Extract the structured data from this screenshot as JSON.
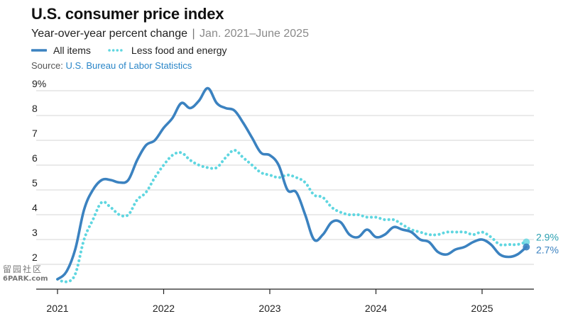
{
  "header": {
    "title": "U.S. consumer price index",
    "subtitle_main": "Year-over-year percent change",
    "subtitle_sep": "|",
    "subtitle_range": "Jan. 2021–June 2025",
    "source_label": "Source:",
    "source_agency": "U.S. Bureau of Labor Statistics"
  },
  "legend": [
    {
      "label": "All items"
    },
    {
      "label": "Less food and energy"
    }
  ],
  "watermark": {
    "line1": "留园社区",
    "line2": "6PARK.com"
  },
  "colors": {
    "all_items": "#3b82c0",
    "core": "#5fd6e0",
    "grid": "#d6d6d6",
    "axis": "#222222"
  },
  "chart_data": {
    "type": "line",
    "title": "U.S. consumer price index",
    "subtitle": "Year-over-year percent change | Jan. 2021–June 2025",
    "xlabel": "",
    "ylabel": "",
    "ylim": [
      1,
      9
    ],
    "yticks": [
      2,
      3,
      4,
      5,
      6,
      7,
      8,
      9
    ],
    "ytick_labels": [
      "2",
      "3",
      "4",
      "5",
      "6",
      "7",
      "8",
      "9%"
    ],
    "xticks": [
      "2021",
      "2022",
      "2023",
      "2024",
      "2025"
    ],
    "x": [
      "2021-01",
      "2021-02",
      "2021-03",
      "2021-04",
      "2021-05",
      "2021-06",
      "2021-07",
      "2021-08",
      "2021-09",
      "2021-10",
      "2021-11",
      "2021-12",
      "2022-01",
      "2022-02",
      "2022-03",
      "2022-04",
      "2022-05",
      "2022-06",
      "2022-07",
      "2022-08",
      "2022-09",
      "2022-10",
      "2022-11",
      "2022-12",
      "2023-01",
      "2023-02",
      "2023-03",
      "2023-04",
      "2023-05",
      "2023-06",
      "2023-07",
      "2023-08",
      "2023-09",
      "2023-10",
      "2023-11",
      "2023-12",
      "2024-01",
      "2024-02",
      "2024-03",
      "2024-04",
      "2024-05",
      "2024-06",
      "2024-07",
      "2024-08",
      "2024-09",
      "2024-10",
      "2024-11",
      "2024-12",
      "2025-01",
      "2025-02",
      "2025-03",
      "2025-04",
      "2025-05",
      "2025-06"
    ],
    "series": [
      {
        "name": "All items",
        "style": "solid",
        "color": "#3b82c0",
        "values": [
          1.4,
          1.7,
          2.6,
          4.2,
          5.0,
          5.4,
          5.4,
          5.3,
          5.4,
          6.2,
          6.8,
          7.0,
          7.5,
          7.9,
          8.5,
          8.3,
          8.6,
          9.1,
          8.5,
          8.3,
          8.2,
          7.7,
          7.1,
          6.5,
          6.4,
          6.0,
          5.0,
          4.9,
          4.0,
          3.0,
          3.2,
          3.7,
          3.7,
          3.2,
          3.1,
          3.4,
          3.1,
          3.2,
          3.5,
          3.4,
          3.3,
          3.0,
          2.9,
          2.5,
          2.4,
          2.6,
          2.7,
          2.9,
          3.0,
          2.8,
          2.4,
          2.3,
          2.4,
          2.7
        ]
      },
      {
        "name": "Less food and energy",
        "style": "dotted",
        "color": "#5fd6e0",
        "values": [
          1.4,
          1.3,
          1.6,
          3.0,
          3.8,
          4.5,
          4.3,
          4.0,
          4.0,
          4.6,
          4.9,
          5.5,
          6.0,
          6.4,
          6.5,
          6.2,
          6.0,
          5.9,
          5.9,
          6.3,
          6.6,
          6.3,
          6.0,
          5.7,
          5.6,
          5.5,
          5.6,
          5.5,
          5.3,
          4.8,
          4.7,
          4.3,
          4.1,
          4.0,
          4.0,
          3.9,
          3.9,
          3.8,
          3.8,
          3.6,
          3.4,
          3.3,
          3.2,
          3.2,
          3.3,
          3.3,
          3.3,
          3.2,
          3.3,
          3.1,
          2.8,
          2.8,
          2.8,
          2.9
        ]
      }
    ],
    "end_labels": [
      "2.7%",
      "2.9%"
    ],
    "grid": true,
    "legend_position": "top-left"
  }
}
